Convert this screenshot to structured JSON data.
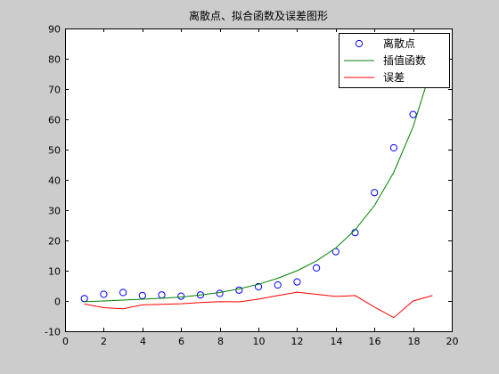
{
  "chart_data": {
    "type": "line",
    "title": "离散点、拟合函数及误差图形",
    "xlabel": "",
    "ylabel": "",
    "xlim": [
      0,
      20
    ],
    "ylim": [
      -10,
      90
    ],
    "xticks": [
      0,
      2,
      4,
      6,
      8,
      10,
      12,
      14,
      16,
      18,
      20
    ],
    "yticks": [
      -10,
      0,
      10,
      20,
      30,
      40,
      50,
      60,
      70,
      80,
      90
    ],
    "grid": false,
    "legend_position": "top-right",
    "series": [
      {
        "name": "离散点",
        "kind": "scatter",
        "marker": "circle",
        "color": "#0000ff",
        "x": [
          1,
          2,
          3,
          4,
          5,
          6,
          7,
          8,
          9,
          10,
          11,
          12,
          13,
          14,
          15,
          16,
          17,
          18
        ],
        "y": [
          0.8,
          2.2,
          2.8,
          1.8,
          2.0,
          1.6,
          2.0,
          2.5,
          3.6,
          4.7,
          5.3,
          6.3,
          10.9,
          16.3,
          22.6,
          35.8,
          50.6,
          61.6
        ]
      },
      {
        "name": "插值函数",
        "kind": "line",
        "color": "#008000",
        "x": [
          1,
          2,
          3,
          4,
          5,
          6,
          7,
          8,
          9,
          10,
          11,
          12,
          13,
          14,
          15,
          16,
          17,
          18,
          19
        ],
        "y": [
          -0.2,
          0.0,
          0.3,
          0.6,
          0.9,
          1.3,
          2.0,
          2.8,
          4.0,
          5.5,
          7.5,
          10.0,
          13.2,
          17.5,
          23.5,
          31.5,
          42.5,
          57.5,
          78.0
        ]
      },
      {
        "name": "误差",
        "kind": "line",
        "color": "#ff0000",
        "x": [
          1,
          2,
          3,
          4,
          5,
          6,
          7,
          8,
          9,
          10,
          11,
          12,
          13,
          14,
          15,
          16,
          17,
          18,
          19
        ],
        "y": [
          -1.0,
          -2.2,
          -2.6,
          -1.3,
          -1.1,
          -0.9,
          -0.5,
          -0.2,
          -0.3,
          0.6,
          1.8,
          2.9,
          2.2,
          1.5,
          1.8,
          -2.0,
          -5.5,
          0.0,
          1.8
        ]
      }
    ]
  }
}
